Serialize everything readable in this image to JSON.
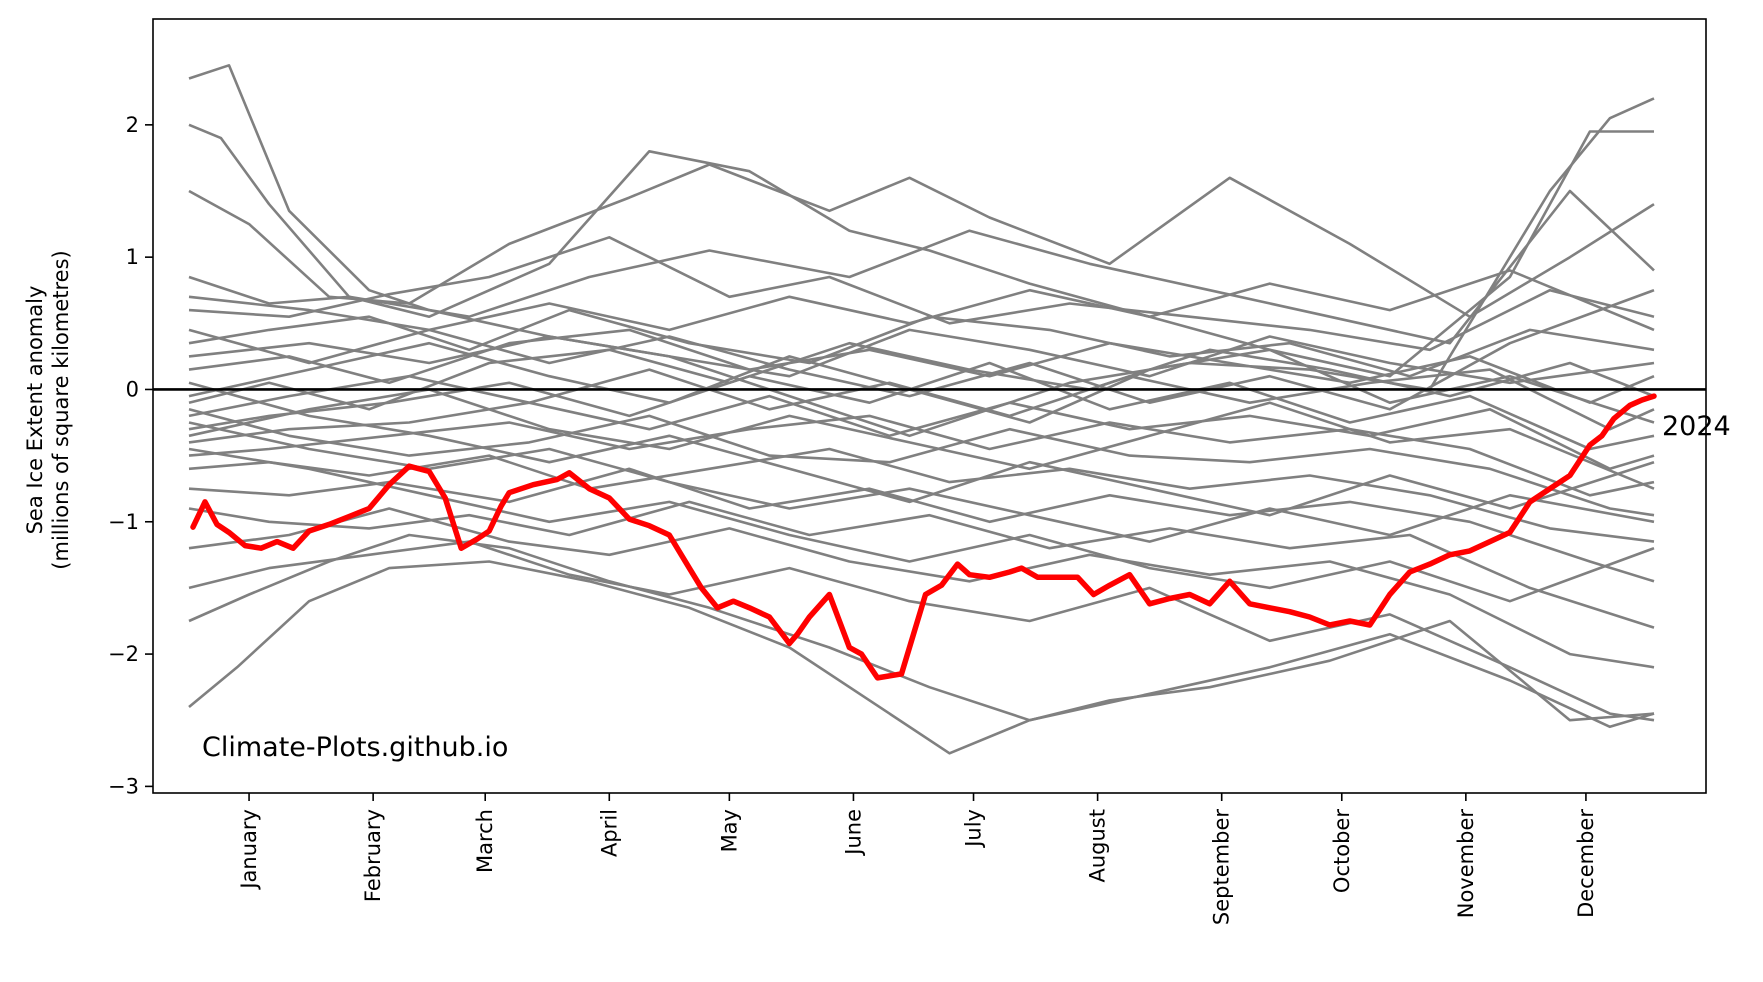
{
  "chart_data": {
    "type": "line",
    "title": "",
    "xlabel": "",
    "ylabel": "Sea Ice Extent anomaly",
    "ylabel_sub": "(millions of square kilometres)",
    "ylim": [
      -3.05,
      2.8
    ],
    "xlim_day_of_year": [
      -9,
      379
    ],
    "yticks": [
      -3,
      -2,
      -1,
      0,
      1,
      2
    ],
    "ytick_labels": [
      "−3",
      "−2",
      "−1",
      "0",
      "1",
      "2"
    ],
    "month_ticks": [
      {
        "label": "January",
        "day": 15
      },
      {
        "label": "February",
        "day": 46
      },
      {
        "label": "March",
        "day": 74
      },
      {
        "label": "April",
        "day": 105
      },
      {
        "label": "May",
        "day": 135
      },
      {
        "label": "June",
        "day": 166
      },
      {
        "label": "July",
        "day": 196
      },
      {
        "label": "August",
        "day": 227
      },
      {
        "label": "September",
        "day": 258
      },
      {
        "label": "October",
        "day": 288
      },
      {
        "label": "November",
        "day": 319
      },
      {
        "label": "December",
        "day": 349
      }
    ],
    "zero_line": true,
    "watermark": "Climate-Plots.github.io",
    "highlight": {
      "name": "2024",
      "color": "#ff0000",
      "x_day": [
        1,
        4,
        7,
        10,
        14,
        18,
        22,
        26,
        30,
        35,
        40,
        45,
        50,
        55,
        60,
        64,
        68,
        72,
        75,
        78,
        80,
        83,
        86,
        89,
        92,
        95,
        100,
        105,
        110,
        115,
        120,
        125,
        128,
        132,
        136,
        140,
        145,
        150,
        152,
        155,
        160,
        165,
        168,
        172,
        178,
        184,
        188,
        192,
        195,
        200,
        205,
        208,
        212,
        214,
        218,
        222,
        226,
        230,
        235,
        240,
        245,
        250,
        255,
        260,
        265,
        270,
        275,
        280,
        285,
        290,
        295,
        300,
        305,
        310,
        315,
        320,
        325,
        330,
        335,
        340,
        345,
        350,
        353,
        356,
        360,
        363,
        366
      ],
      "values": [
        -1.04,
        -0.85,
        -1.02,
        -1.08,
        -1.18,
        -1.2,
        -1.15,
        -1.2,
        -1.07,
        -1.02,
        -0.96,
        -0.9,
        -0.72,
        -0.58,
        -0.62,
        -0.82,
        -1.2,
        -1.13,
        -1.07,
        -0.88,
        -0.78,
        -0.75,
        -0.72,
        -0.7,
        -0.68,
        -0.63,
        -0.75,
        -0.82,
        -0.98,
        -1.03,
        -1.1,
        -1.35,
        -1.5,
        -1.65,
        -1.6,
        -1.65,
        -1.72,
        -1.92,
        -1.85,
        -1.72,
        -1.55,
        -1.95,
        -2.0,
        -2.18,
        -2.15,
        -1.55,
        -1.48,
        -1.32,
        -1.4,
        -1.42,
        -1.38,
        -1.35,
        -1.42,
        -1.42,
        -1.42,
        -1.42,
        -1.55,
        -1.48,
        -1.4,
        -1.62,
        -1.58,
        -1.55,
        -1.62,
        -1.45,
        -1.62,
        -1.65,
        -1.68,
        -1.72,
        -1.78,
        -1.75,
        -1.78,
        -1.55,
        -1.38,
        -1.32,
        -1.25,
        -1.22,
        -1.15,
        -1.08,
        -0.85,
        -0.75,
        -0.65,
        -0.42,
        -0.35,
        -0.22,
        -0.12,
        -0.08,
        -0.05
      ]
    },
    "background_series_color": "#808080",
    "background_series": [
      {
        "x_day": [
          0,
          10,
          25,
          45,
          60,
          90,
          120,
          150,
          180,
          200,
          220,
          250,
          280,
          310,
          340,
          355,
          366
        ],
        "values": [
          2.35,
          2.45,
          1.35,
          0.75,
          0.6,
          0.4,
          0.25,
          -0.05,
          -0.35,
          -0.15,
          0.05,
          0.2,
          0.15,
          0.0,
          1.5,
          2.05,
          2.2
        ]
      },
      {
        "x_day": [
          0,
          8,
          20,
          40,
          60,
          90,
          115,
          140,
          165,
          185,
          210,
          240,
          270,
          300,
          330,
          350,
          366
        ],
        "values": [
          2.0,
          1.9,
          1.4,
          0.7,
          0.55,
          0.95,
          1.8,
          1.65,
          1.2,
          1.05,
          0.8,
          0.55,
          0.3,
          0.1,
          0.85,
          1.95,
          1.95
        ]
      },
      {
        "x_day": [
          0,
          15,
          35,
          55,
          80,
          110,
          130,
          160,
          180,
          200,
          230,
          260,
          290,
          320,
          345,
          366
        ],
        "values": [
          1.5,
          1.25,
          0.7,
          0.65,
          1.1,
          1.45,
          1.7,
          1.35,
          1.6,
          1.3,
          0.95,
          1.6,
          1.1,
          0.55,
          1.0,
          1.4
        ]
      },
      {
        "x_day": [
          0,
          20,
          40,
          70,
          100,
          130,
          165,
          195,
          225,
          255,
          285,
          315,
          345,
          366
        ],
        "values": [
          0.85,
          0.65,
          0.7,
          0.55,
          0.85,
          1.05,
          0.85,
          1.2,
          0.95,
          0.75,
          0.55,
          0.35,
          1.5,
          0.9
        ]
      },
      {
        "x_day": [
          0,
          25,
          50,
          75,
          105,
          135,
          160,
          190,
          220,
          250,
          280,
          310,
          340,
          366
        ],
        "values": [
          0.6,
          0.55,
          0.72,
          0.85,
          1.15,
          0.7,
          0.85,
          0.5,
          0.65,
          0.55,
          0.45,
          0.3,
          0.75,
          0.55
        ]
      },
      {
        "x_day": [
          0,
          20,
          45,
          70,
          95,
          125,
          155,
          185,
          215,
          245,
          275,
          305,
          335,
          366
        ],
        "values": [
          0.35,
          0.45,
          0.55,
          0.3,
          0.6,
          0.35,
          0.2,
          0.55,
          0.45,
          0.25,
          0.35,
          0.1,
          0.45,
          0.3
        ]
      },
      {
        "x_day": [
          0,
          25,
          50,
          80,
          110,
          140,
          170,
          200,
          230,
          260,
          290,
          320,
          350,
          366
        ],
        "values": [
          0.15,
          0.25,
          0.05,
          0.35,
          0.45,
          0.15,
          0.3,
          0.1,
          0.35,
          0.2,
          0.05,
          0.25,
          -0.1,
          0.1
        ]
      },
      {
        "x_day": [
          0,
          20,
          45,
          75,
          105,
          135,
          165,
          195,
          225,
          255,
          285,
          315,
          345,
          366
        ],
        "values": [
          -0.1,
          0.05,
          -0.15,
          0.2,
          0.3,
          0.05,
          0.35,
          0.15,
          0.0,
          0.3,
          0.15,
          -0.05,
          0.2,
          -0.05
        ]
      },
      {
        "x_day": [
          0,
          25,
          55,
          85,
          115,
          145,
          175,
          205,
          235,
          265,
          295,
          325,
          355,
          366
        ],
        "values": [
          -0.2,
          -0.05,
          0.1,
          -0.1,
          0.15,
          -0.15,
          0.05,
          -0.2,
          0.1,
          -0.1,
          0.05,
          0.15,
          -0.3,
          -0.15
        ]
      },
      {
        "x_day": [
          0,
          20,
          50,
          80,
          110,
          140,
          170,
          200,
          230,
          260,
          290,
          320,
          350,
          366
        ],
        "values": [
          -0.3,
          -0.2,
          -0.1,
          0.05,
          -0.2,
          0.1,
          -0.1,
          0.2,
          -0.15,
          0.05,
          -0.25,
          -0.05,
          -0.45,
          -0.35
        ]
      },
      {
        "x_day": [
          0,
          25,
          55,
          85,
          115,
          145,
          175,
          205,
          235,
          265,
          295,
          325,
          355,
          366
        ],
        "values": [
          -0.4,
          -0.3,
          -0.25,
          -0.1,
          -0.3,
          -0.05,
          -0.35,
          -0.1,
          -0.3,
          -0.2,
          -0.35,
          -0.15,
          -0.6,
          -0.5
        ]
      },
      {
        "x_day": [
          0,
          20,
          50,
          80,
          110,
          140,
          170,
          200,
          230,
          260,
          290,
          320,
          350,
          366
        ],
        "values": [
          -0.5,
          -0.45,
          -0.35,
          -0.25,
          -0.45,
          -0.3,
          -0.2,
          -0.45,
          -0.25,
          -0.4,
          -0.3,
          -0.45,
          -0.8,
          -0.7
        ]
      },
      {
        "x_day": [
          0,
          25,
          55,
          85,
          115,
          145,
          175,
          205,
          235,
          265,
          295,
          325,
          355,
          366
        ],
        "values": [
          -0.15,
          -0.35,
          -0.5,
          -0.4,
          -0.2,
          -0.5,
          -0.55,
          -0.3,
          -0.5,
          -0.55,
          -0.45,
          -0.6,
          -0.9,
          -0.95
        ]
      },
      {
        "x_day": [
          0,
          20,
          45,
          75,
          100,
          130,
          160,
          190,
          220,
          250,
          280,
          310,
          340,
          366
        ],
        "values": [
          -0.6,
          -0.55,
          -0.65,
          -0.5,
          -0.75,
          -0.6,
          -0.45,
          -0.7,
          -0.6,
          -0.75,
          -0.65,
          -0.8,
          -1.05,
          -1.15
        ]
      },
      {
        "x_day": [
          0,
          25,
          50,
          80,
          110,
          140,
          170,
          200,
          230,
          260,
          290,
          320,
          350,
          366
        ],
        "values": [
          -0.75,
          -0.8,
          -0.7,
          -0.85,
          -0.6,
          -0.9,
          -0.75,
          -1.0,
          -0.8,
          -0.95,
          -0.85,
          -1.0,
          -1.3,
          -1.45
        ]
      },
      {
        "x_day": [
          0,
          20,
          45,
          70,
          95,
          125,
          155,
          185,
          215,
          245,
          275,
          305,
          335,
          366
        ],
        "values": [
          -0.9,
          -1.0,
          -1.05,
          -0.95,
          -1.1,
          -0.85,
          -1.1,
          -0.95,
          -1.2,
          -1.05,
          -1.2,
          -1.1,
          -1.5,
          -1.8
        ]
      },
      {
        "x_day": [
          0,
          25,
          50,
          80,
          105,
          135,
          165,
          195,
          225,
          255,
          285,
          315,
          345,
          366
        ],
        "values": [
          -1.2,
          -1.1,
          -0.9,
          -1.15,
          -1.25,
          -1.05,
          -1.3,
          -1.45,
          -1.25,
          -1.4,
          -1.3,
          -1.55,
          -2.0,
          -2.1
        ]
      },
      {
        "x_day": [
          0,
          20,
          45,
          70,
          95,
          120,
          150,
          180,
          210,
          240,
          270,
          300,
          330,
          355,
          366
        ],
        "values": [
          -1.5,
          -1.35,
          -1.25,
          -1.15,
          -1.4,
          -1.55,
          -1.35,
          -1.6,
          -1.75,
          -1.5,
          -1.9,
          -1.7,
          -2.1,
          -2.45,
          -2.5
        ]
      },
      {
        "x_day": [
          0,
          15,
          35,
          55,
          80,
          105,
          130,
          160,
          185,
          210,
          240,
          270,
          300,
          330,
          355,
          366
        ],
        "values": [
          -1.75,
          -1.55,
          -1.3,
          -1.1,
          -1.2,
          -1.45,
          -1.65,
          -1.95,
          -2.25,
          -2.5,
          -2.3,
          -2.1,
          -1.85,
          -2.2,
          -2.55,
          -2.45
        ]
      },
      {
        "x_day": [
          0,
          12,
          30,
          50,
          75,
          100,
          125,
          150,
          175,
          190,
          210,
          230,
          255,
          285,
          315,
          345,
          366
        ],
        "values": [
          -2.4,
          -2.1,
          -1.6,
          -1.35,
          -1.3,
          -1.45,
          -1.65,
          -1.95,
          -2.45,
          -2.75,
          -2.5,
          -2.35,
          -2.25,
          -2.05,
          -1.75,
          -2.5,
          -2.45
        ]
      },
      {
        "x_day": [
          0,
          30,
          60,
          90,
          120,
          150,
          180,
          210,
          240,
          270,
          300,
          330,
          366
        ],
        "values": [
          0.25,
          0.35,
          0.2,
          0.4,
          0.25,
          0.1,
          0.45,
          0.3,
          0.1,
          0.4,
          0.2,
          0.05,
          0.2
        ]
      },
      {
        "x_day": [
          0,
          30,
          60,
          90,
          120,
          150,
          180,
          210,
          240,
          270,
          300,
          330,
          366
        ],
        "values": [
          -0.05,
          0.15,
          0.35,
          0.1,
          -0.1,
          0.25,
          0.0,
          -0.25,
          0.15,
          0.3,
          -0.1,
          0.1,
          -0.25
        ]
      },
      {
        "x_day": [
          0,
          30,
          60,
          90,
          120,
          150,
          180,
          210,
          240,
          270,
          300,
          330,
          366
        ],
        "values": [
          -0.35,
          -0.15,
          0.0,
          -0.3,
          -0.45,
          -0.2,
          -0.4,
          -0.6,
          -0.35,
          -0.1,
          -0.4,
          -0.3,
          -0.75
        ]
      },
      {
        "x_day": [
          0,
          30,
          60,
          90,
          120,
          150,
          180,
          210,
          240,
          270,
          300,
          330,
          366
        ],
        "values": [
          0.05,
          -0.2,
          -0.35,
          -0.55,
          -0.35,
          -0.6,
          -0.85,
          -0.55,
          -0.75,
          -0.95,
          -0.65,
          -0.9,
          -0.55
        ]
      },
      {
        "x_day": [
          0,
          30,
          60,
          90,
          120,
          150,
          180,
          210,
          240,
          270,
          300,
          330,
          366
        ],
        "values": [
          0.45,
          0.2,
          0.45,
          0.65,
          0.45,
          0.7,
          0.5,
          0.75,
          0.55,
          0.8,
          0.6,
          0.9,
          0.45
        ]
      },
      {
        "x_day": [
          0,
          30,
          60,
          90,
          120,
          150,
          180,
          210,
          240,
          270,
          300,
          330,
          366
        ],
        "values": [
          -0.25,
          -0.45,
          -0.6,
          -0.45,
          -0.7,
          -0.9,
          -0.75,
          -0.95,
          -1.15,
          -0.9,
          -1.1,
          -0.8,
          -1.0
        ]
      },
      {
        "x_day": [
          0,
          30,
          60,
          90,
          120,
          150,
          180,
          210,
          240,
          270,
          300,
          330,
          366
        ],
        "values": [
          0.7,
          0.6,
          0.45,
          0.2,
          0.4,
          0.15,
          -0.05,
          0.2,
          -0.1,
          0.1,
          -0.15,
          0.35,
          0.75
        ]
      },
      {
        "x_day": [
          0,
          30,
          60,
          90,
          120,
          150,
          180,
          210,
          240,
          270,
          300,
          330,
          366
        ],
        "values": [
          -0.45,
          -0.6,
          -0.8,
          -1.0,
          -0.85,
          -1.1,
          -1.3,
          -1.1,
          -1.35,
          -1.5,
          -1.3,
          -1.6,
          -1.2
        ]
      }
    ]
  }
}
